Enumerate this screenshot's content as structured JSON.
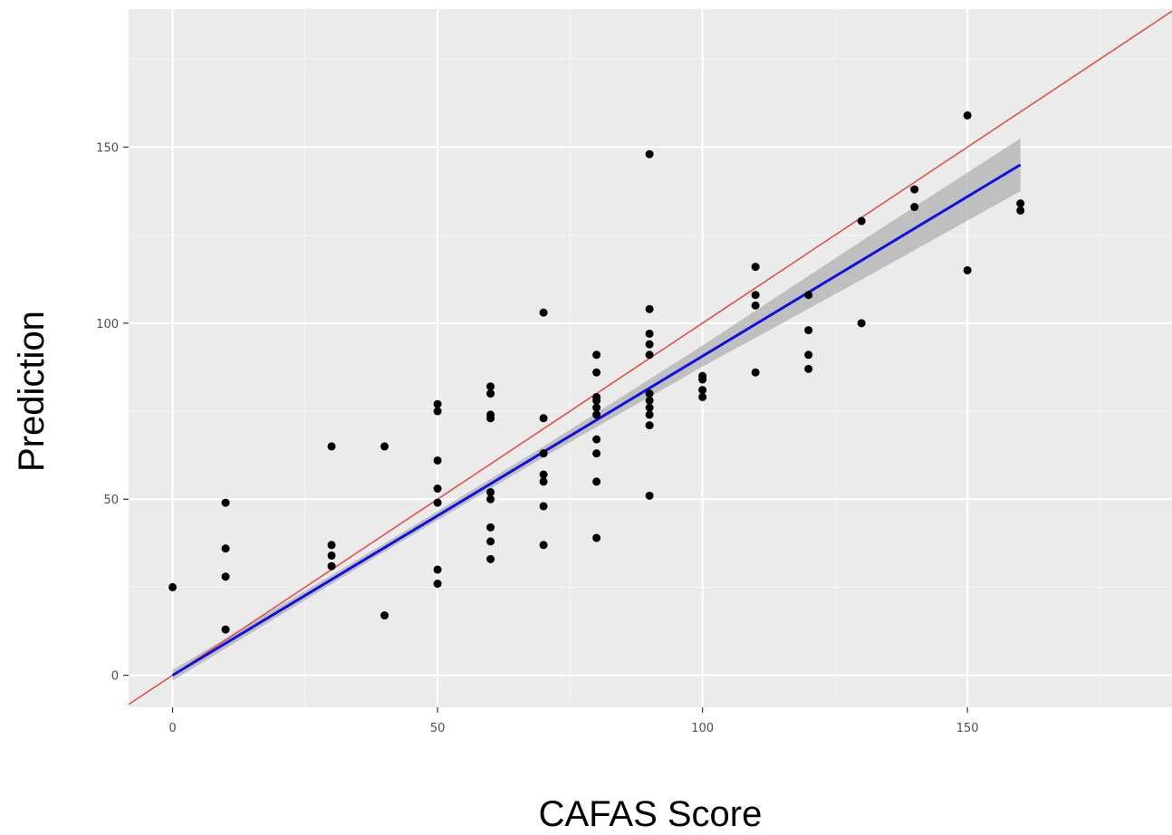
{
  "chart_data": {
    "type": "scatter",
    "title": "",
    "xlabel": "CAFAS Score",
    "ylabel": "Prediction",
    "xlim": [
      -8.3,
      188.6
    ],
    "ylim": [
      -9.1,
      189.2
    ],
    "x_ticks": [
      0,
      50,
      100,
      150
    ],
    "y_ticks": [
      0,
      50,
      100,
      150
    ],
    "x_tick_labels": [
      "0",
      "50",
      "100",
      "150"
    ],
    "y_tick_labels": [
      "0",
      "50",
      "100",
      "150"
    ],
    "grid": true,
    "panel_background": "#ebebeb",
    "point_color": "#000000",
    "series": [
      {
        "points": [
          [
            0,
            25
          ],
          [
            10,
            49
          ],
          [
            10,
            36
          ],
          [
            10,
            28
          ],
          [
            10,
            13
          ],
          [
            30,
            65
          ],
          [
            30,
            37
          ],
          [
            30,
            34
          ],
          [
            30,
            31
          ],
          [
            40,
            65
          ],
          [
            40,
            17
          ],
          [
            50,
            77
          ],
          [
            50,
            75
          ],
          [
            50,
            61
          ],
          [
            50,
            53
          ],
          [
            50,
            49
          ],
          [
            50,
            30
          ],
          [
            50,
            26
          ],
          [
            60,
            82
          ],
          [
            60,
            80
          ],
          [
            60,
            74
          ],
          [
            60,
            73
          ],
          [
            60,
            52
          ],
          [
            60,
            50
          ],
          [
            60,
            42
          ],
          [
            60,
            38
          ],
          [
            60,
            33
          ],
          [
            70,
            103
          ],
          [
            70,
            73
          ],
          [
            70,
            63
          ],
          [
            70,
            57
          ],
          [
            70,
            55
          ],
          [
            70,
            48
          ],
          [
            70,
            37
          ],
          [
            80,
            91
          ],
          [
            80,
            86
          ],
          [
            80,
            79
          ],
          [
            80,
            78
          ],
          [
            80,
            76
          ],
          [
            80,
            74
          ],
          [
            80,
            67
          ],
          [
            80,
            63
          ],
          [
            80,
            55
          ],
          [
            80,
            39
          ],
          [
            90,
            148
          ],
          [
            90,
            104
          ],
          [
            90,
            97
          ],
          [
            90,
            94
          ],
          [
            90,
            91
          ],
          [
            90,
            80
          ],
          [
            90,
            78
          ],
          [
            90,
            76
          ],
          [
            90,
            74
          ],
          [
            90,
            71
          ],
          [
            90,
            51
          ],
          [
            100,
            85
          ],
          [
            100,
            84
          ],
          [
            100,
            81
          ],
          [
            100,
            79
          ],
          [
            110,
            116
          ],
          [
            110,
            108
          ],
          [
            110,
            105
          ],
          [
            110,
            86
          ],
          [
            120,
            108
          ],
          [
            120,
            98
          ],
          [
            120,
            91
          ],
          [
            120,
            87
          ],
          [
            130,
            129
          ],
          [
            130,
            100
          ],
          [
            140,
            138
          ],
          [
            140,
            133
          ],
          [
            150,
            159
          ],
          [
            150,
            115
          ],
          [
            160,
            134
          ],
          [
            160,
            132
          ]
        ]
      }
    ],
    "reference_line": {
      "slope": 1,
      "intercept": 0,
      "color": "#e0524a"
    },
    "fit_line": {
      "method": "lm",
      "x_range": [
        0,
        160
      ],
      "y_range": [
        0,
        145
      ],
      "color": "#1010e0",
      "ribbon_color": "#b0b0b0",
      "ribbon_halfwidth_at_x": [
        [
          0,
          1.5
        ],
        [
          40,
          1.2
        ],
        [
          70,
          1.5
        ],
        [
          100,
          3
        ],
        [
          130,
          5.5
        ],
        [
          160,
          7.5
        ]
      ]
    }
  }
}
